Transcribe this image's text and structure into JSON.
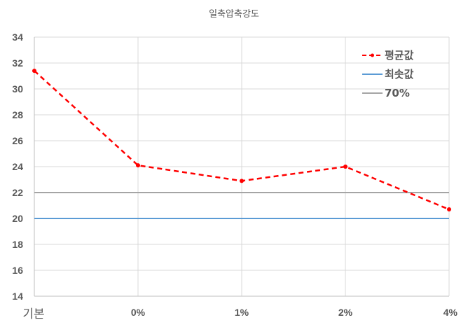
{
  "chart_data": {
    "type": "line",
    "title": "일축압축강도",
    "xlabel": "",
    "ylabel": "",
    "categories": [
      "기본",
      "0%",
      "1%",
      "2%",
      "4%"
    ],
    "ylim": [
      14,
      34
    ],
    "yticks": [
      14,
      16,
      18,
      20,
      22,
      24,
      26,
      28,
      30,
      32,
      34
    ],
    "grid": true,
    "legend_position": "top-right inside",
    "series": [
      {
        "name": "평균값",
        "style": "dashed",
        "color": "#ff0000",
        "marker": "circle",
        "values": [
          31.4,
          24.1,
          22.9,
          24.0,
          20.7
        ]
      },
      {
        "name": "최솟값",
        "style": "solid",
        "color": "#5b9bd5",
        "values": [
          20,
          20,
          20,
          20,
          20
        ]
      },
      {
        "name": "70%",
        "style": "solid",
        "color": "#a5a5a5",
        "values": [
          22,
          22,
          22,
          22,
          22
        ]
      }
    ]
  }
}
